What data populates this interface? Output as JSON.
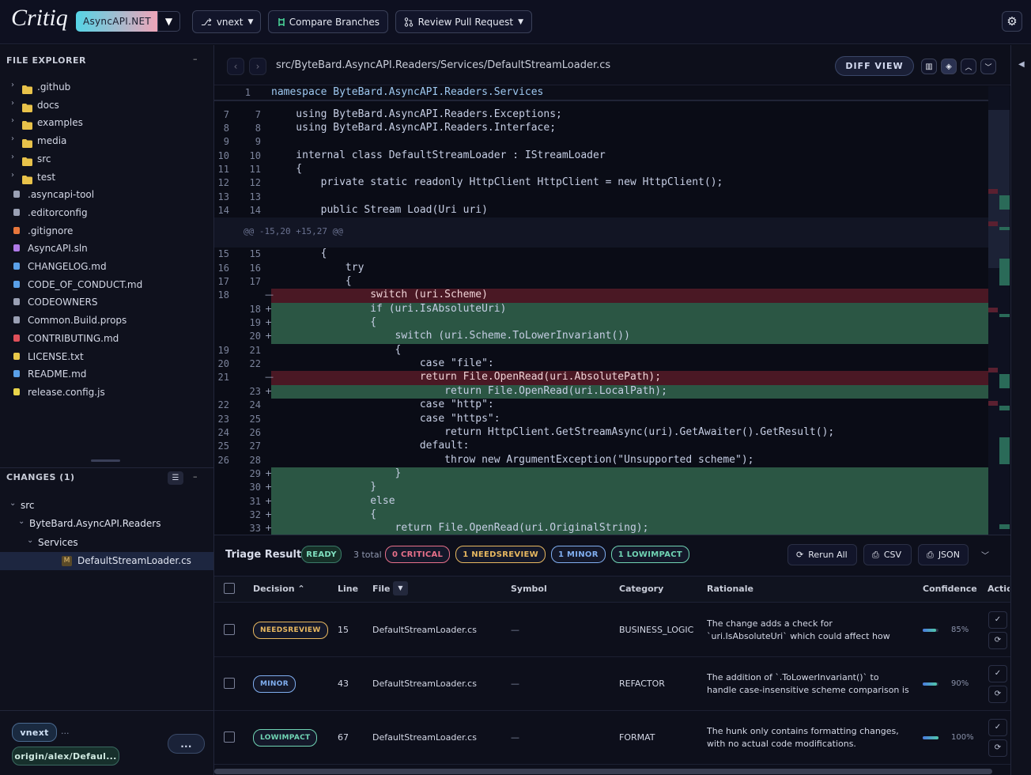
{
  "header": {
    "logo": "Critiq",
    "repo": "AsyncAPI.NET",
    "branch": "vnext",
    "compare": "Compare Branches",
    "review": "Review Pull Request"
  },
  "explorer": {
    "title": "FILE EXPLORER",
    "items": [
      {
        "name": ".github",
        "folder": true
      },
      {
        "name": "docs",
        "folder": true
      },
      {
        "name": "examples",
        "folder": true
      },
      {
        "name": "media",
        "folder": true
      },
      {
        "name": "src",
        "folder": true
      },
      {
        "name": "test",
        "folder": true
      },
      {
        "name": ".asyncapi-tool",
        "color": "#9aa0b4"
      },
      {
        "name": ".editorconfig",
        "color": "#9aa0b4"
      },
      {
        "name": ".gitignore",
        "color": "#e8773c"
      },
      {
        "name": "AsyncAPI.sln",
        "color": "#b07ae8"
      },
      {
        "name": "CHANGELOG.md",
        "color": "#5aa0e8"
      },
      {
        "name": "CODE_OF_CONDUCT.md",
        "color": "#5aa0e8"
      },
      {
        "name": "CODEOWNERS",
        "color": "#9aa0b4"
      },
      {
        "name": "Common.Build.props",
        "color": "#9aa0b4"
      },
      {
        "name": "CONTRIBUTING.md",
        "color": "#e0505a"
      },
      {
        "name": "LICENSE.txt",
        "color": "#e8c84a"
      },
      {
        "name": "README.md",
        "color": "#5aa0e8"
      },
      {
        "name": "release.config.js",
        "color": "#e8d44a"
      }
    ]
  },
  "changes": {
    "title": "CHANGES (1)",
    "tree": [
      {
        "name": "src",
        "depth": 0
      },
      {
        "name": "ByteBard.AsyncAPI.Readers",
        "depth": 1
      },
      {
        "name": "Services",
        "depth": 2
      },
      {
        "name": "DefaultStreamLoader.cs",
        "depth": 3,
        "status": "M"
      }
    ]
  },
  "footer": {
    "branch": "vnext",
    "ellipsis": "...",
    "remote": "origin/alex/Defaul...",
    "more": "..."
  },
  "editor": {
    "path": "src/ByteBard.AsyncAPI.Readers/Services/DefaultStreamLoader.cs",
    "diff_view": "DIFF VIEW",
    "sticky": {
      "new": 1,
      "code": "namespace ByteBard.AsyncAPI.Readers.Services"
    },
    "lines": [
      {
        "kind": "ctx",
        "old": 7,
        "new": 7,
        "code": "    using ByteBard.AsyncAPI.Readers.Exceptions;"
      },
      {
        "kind": "ctx",
        "old": 8,
        "new": 8,
        "code": "    using ByteBard.AsyncAPI.Readers.Interface;"
      },
      {
        "kind": "ctx",
        "old": 9,
        "new": 9,
        "code": null
      },
      {
        "kind": "ctx",
        "old": 10,
        "new": 10,
        "code": "    internal class DefaultStreamLoader : IStreamLoader"
      },
      {
        "kind": "ctx",
        "old": 11,
        "new": 11,
        "code": "    {"
      },
      {
        "kind": "ctx",
        "old": 12,
        "new": 12,
        "code": "        private static readonly HttpClient HttpClient = new HttpClient();"
      },
      {
        "kind": "ctx",
        "old": 13,
        "new": 13,
        "code": null
      },
      {
        "kind": "ctx",
        "old": 14,
        "new": 14,
        "code": "        public Stream Load(Uri uri)"
      },
      {
        "kind": "hunk",
        "code": "@@ -15,20 +15,27 @@"
      },
      {
        "kind": "ctx",
        "old": 15,
        "new": 15,
        "code": "        {"
      },
      {
        "kind": "ctx",
        "old": 16,
        "new": 16,
        "code": "            try"
      },
      {
        "kind": "ctx",
        "old": 17,
        "new": 17,
        "code": "            {"
      },
      {
        "kind": "del",
        "old": 18,
        "marker": "—",
        "code": "                switch (uri.Scheme)"
      },
      {
        "kind": "add",
        "new": 18,
        "marker": "+",
        "code": "                if (uri.IsAbsoluteUri)"
      },
      {
        "kind": "add",
        "new": 19,
        "marker": "+",
        "code": "                {"
      },
      {
        "kind": "add",
        "new": 20,
        "marker": "+",
        "code": "                    switch (uri.Scheme.ToLowerInvariant())"
      },
      {
        "kind": "ctx",
        "old": 19,
        "new": 21,
        "code": "                    {"
      },
      {
        "kind": "ctx",
        "old": 20,
        "new": 22,
        "code": "                        case \"file\":"
      },
      {
        "kind": "del",
        "old": 21,
        "marker": "—",
        "code": "                        return File.OpenRead(uri.AbsolutePath);"
      },
      {
        "kind": "add",
        "new": 23,
        "marker": "+",
        "code": "                            return File.OpenRead(uri.LocalPath);"
      },
      {
        "kind": "ctx",
        "old": 22,
        "new": 24,
        "code": "                        case \"http\":"
      },
      {
        "kind": "ctx",
        "old": 23,
        "new": 25,
        "code": "                        case \"https\":"
      },
      {
        "kind": "ctx",
        "old": 24,
        "new": 26,
        "code": "                            return HttpClient.GetStreamAsync(uri).GetAwaiter().GetResult();"
      },
      {
        "kind": "ctx",
        "old": 25,
        "new": 27,
        "code": "                        default:"
      },
      {
        "kind": "ctx",
        "old": 26,
        "new": 28,
        "code": "                            throw new ArgumentException(\"Unsupported scheme\");"
      },
      {
        "kind": "add",
        "new": 29,
        "marker": "+",
        "code": "                    }"
      },
      {
        "kind": "add",
        "new": 30,
        "marker": "+",
        "code": "                }"
      },
      {
        "kind": "add",
        "new": 31,
        "marker": "+",
        "code": "                else"
      },
      {
        "kind": "add",
        "new": 32,
        "marker": "+",
        "code": "                {"
      },
      {
        "kind": "add",
        "new": 33,
        "marker": "+",
        "code": "                    return File.OpenRead(uri.OriginalString);"
      }
    ]
  },
  "triage": {
    "title": "Triage Results",
    "status": "READY",
    "total": "3 total",
    "badges": [
      {
        "label": "0 CRITICAL",
        "color": "#e8708a"
      },
      {
        "label": "1 NEEDSREVIEW",
        "color": "#e8b860"
      },
      {
        "label": "1 MINOR",
        "color": "#80aef0"
      },
      {
        "label": "1 LOWIMPACT",
        "color": "#70d4b4"
      }
    ],
    "buttons": {
      "rerun": "Rerun All",
      "csv": "CSV",
      "json": "JSON"
    },
    "columns": [
      "Decision",
      "Line",
      "File",
      "Symbol",
      "Category",
      "Rationale",
      "Confidence",
      "Actions"
    ],
    "rows": [
      {
        "decision": "NEEDSREVIEW",
        "color": "#e8b860",
        "line": 15,
        "file": "DefaultStreamLoader.cs",
        "symbol": "—",
        "category": "BUSINESS_LOGIC",
        "rationale": "The change adds a check for `uri.IsAbsoluteUri` which could affect how URIs are handled,...",
        "confidence": 85,
        "confidence_label": "85%"
      },
      {
        "decision": "MINOR",
        "color": "#80aef0",
        "line": 43,
        "file": "DefaultStreamLoader.cs",
        "symbol": "—",
        "category": "REFACTOR",
        "rationale": "The addition of `.ToLowerInvariant()` to handle case-insensitive scheme comparison is a minor...",
        "confidence": 90,
        "confidence_label": "90%"
      },
      {
        "decision": "LOWIMPACT",
        "color": "#70d4b4",
        "line": 67,
        "file": "DefaultStreamLoader.cs",
        "symbol": "—",
        "category": "FORMAT",
        "rationale": "The hunk only contains formatting changes, with no actual code modifications.",
        "confidence": 100,
        "confidence_label": "100%"
      }
    ]
  }
}
